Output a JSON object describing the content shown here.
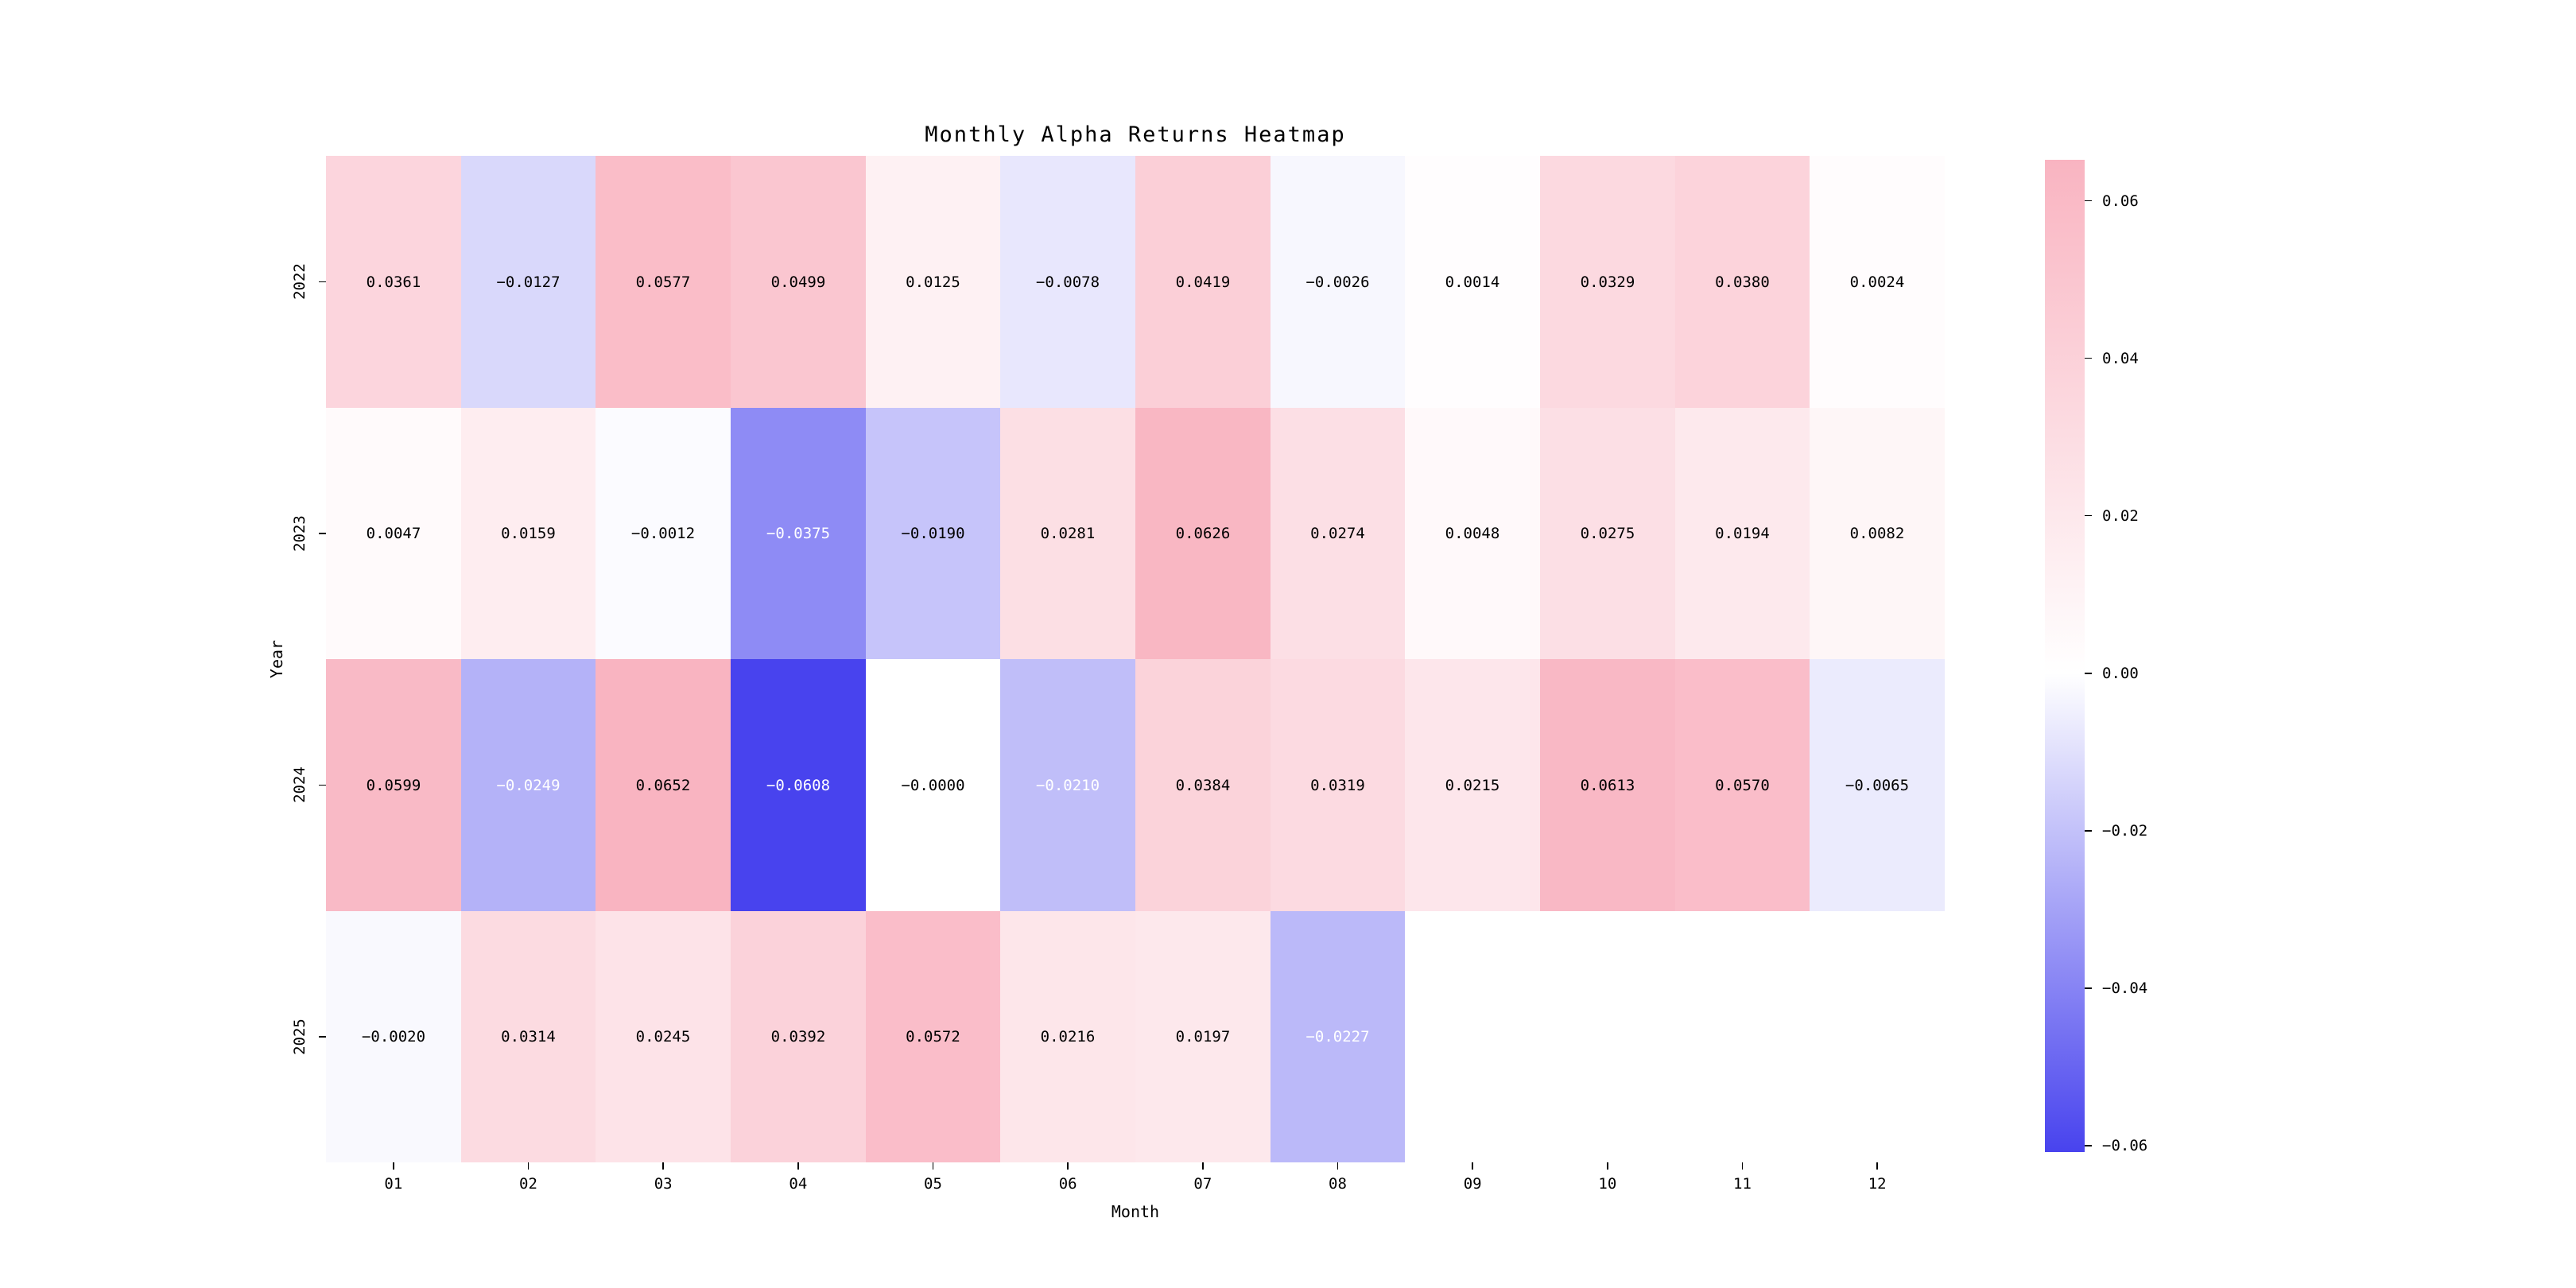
{
  "page": {
    "background": "#ffffff"
  },
  "chart_data": {
    "type": "heatmap",
    "title": "Monthly Alpha Returns Heatmap",
    "xlabel": "Month",
    "ylabel": "Year",
    "x_categories": [
      "01",
      "02",
      "03",
      "04",
      "05",
      "06",
      "07",
      "08",
      "09",
      "10",
      "11",
      "12"
    ],
    "y_categories": [
      "2022",
      "2023",
      "2024",
      "2025"
    ],
    "cells": [
      [
        "0.0361",
        "-0.0127",
        "0.0577",
        "0.0499",
        "0.0125",
        "-0.0078",
        "0.0419",
        "-0.0026",
        "0.0014",
        "0.0329",
        "0.0380",
        "0.0024"
      ],
      [
        "0.0047",
        "0.0159",
        "-0.0012",
        "-0.0375",
        "-0.0190",
        "0.0281",
        "0.0626",
        "0.0274",
        "0.0048",
        "0.0275",
        "0.0194",
        "0.0082"
      ],
      [
        "0.0599",
        "-0.0249",
        "0.0652",
        "-0.0608",
        "-0.0000",
        "-0.0210",
        "0.0384",
        "0.0319",
        "0.0215",
        "0.0613",
        "0.0570",
        "-0.0065"
      ],
      [
        "-0.0020",
        "0.0314",
        "0.0245",
        "0.0392",
        "0.0572",
        "0.0216",
        "0.0197",
        "-0.0227",
        null,
        null,
        null,
        null
      ]
    ],
    "vmin": -0.0608,
    "vmax": 0.0652,
    "white_text_below": -0.02,
    "colors": {
      "positive_end": "#f9b4c1",
      "zero": "#ffffff",
      "negative_end": "#4843ee",
      "text_dark": "#000000",
      "text_light": "#ffffff"
    },
    "colorbar_ticks": [
      {
        "label": "0.06",
        "value": 0.06
      },
      {
        "label": "0.04",
        "value": 0.04
      },
      {
        "label": "0.02",
        "value": 0.02
      },
      {
        "label": "0.00",
        "value": 0.0
      },
      {
        "label": "-0.02",
        "value": -0.02
      },
      {
        "label": "-0.04",
        "value": -0.04
      },
      {
        "label": "-0.06",
        "value": -0.06
      }
    ],
    "grid": false,
    "legend_position": "right"
  }
}
